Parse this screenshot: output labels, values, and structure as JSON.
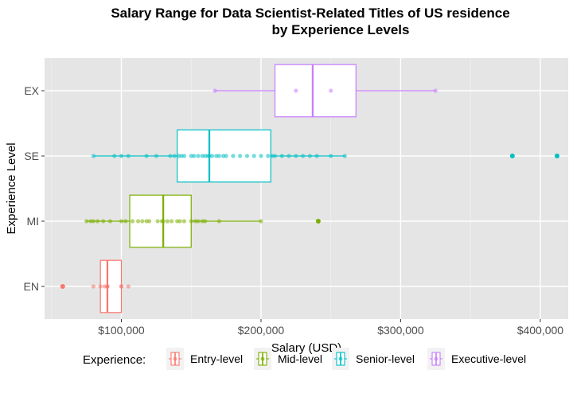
{
  "chart_data": {
    "type": "boxplot",
    "title_lines": [
      "Salary Range for Data Scientist-Related Titles of US residence",
      "by Experience Levels"
    ],
    "xlabel": "Salary (USD)",
    "ylabel": "Experience Level",
    "xlim": [
      45000,
      420000
    ],
    "x_ticks": [
      100000,
      200000,
      300000,
      400000
    ],
    "x_tick_labels": [
      "$100,000",
      "$200,000",
      "$300,000",
      "$400,000"
    ],
    "categories": [
      "EN",
      "MI",
      "SE",
      "EX"
    ],
    "grid": true,
    "legend": {
      "title": "Experience:",
      "position": "bottom",
      "entries": [
        {
          "label": "Entry-level",
          "color": "#F8766D"
        },
        {
          "label": "Mid-level",
          "color": "#7CAE00"
        },
        {
          "label": "Senior-level",
          "color": "#00BFC4"
        },
        {
          "label": "Executive-level",
          "color": "#C77CFF"
        }
      ]
    },
    "series": [
      {
        "category": "EN",
        "color": "#F8766D",
        "min": 85000,
        "q1": 85000,
        "median": 90000,
        "q3": 100000,
        "max": 100000,
        "outliers": [
          58000
        ],
        "points": [
          80000,
          85000,
          88000,
          90000,
          90000,
          100000,
          100000,
          105000
        ]
      },
      {
        "category": "MI",
        "color": "#7CAE00",
        "min": 75000,
        "q1": 106000,
        "median": 130000,
        "q3": 150000,
        "max": 200000,
        "outliers": [
          241000
        ],
        "points": [
          75000,
          78000,
          80000,
          83000,
          87000,
          92000,
          100000,
          103000,
          108000,
          112000,
          115000,
          118000,
          120000,
          126000,
          129000,
          130000,
          133000,
          136000,
          140000,
          142000,
          145000,
          150000,
          153000,
          155000,
          158000,
          160000,
          170000,
          200000
        ]
      },
      {
        "category": "SE",
        "color": "#00BFC4",
        "min": 80000,
        "q1": 140000,
        "median": 163000,
        "q3": 207000,
        "max": 260000,
        "outliers": [
          380000,
          412000
        ],
        "points": [
          80000,
          95000,
          100000,
          105000,
          118000,
          125000,
          135000,
          138000,
          141000,
          143000,
          145000,
          150000,
          152000,
          155000,
          158000,
          160000,
          162000,
          163000,
          165000,
          168000,
          170000,
          173000,
          175000,
          180000,
          185000,
          190000,
          195000,
          200000,
          205000,
          208000,
          210000,
          215000,
          220000,
          225000,
          230000,
          235000,
          240000,
          250000,
          260000
        ]
      },
      {
        "category": "EX",
        "color": "#C77CFF",
        "min": 167000,
        "q1": 210000,
        "median": 237000,
        "q3": 268000,
        "max": 325000,
        "outliers": [],
        "points": [
          167000,
          225000,
          250000,
          325000
        ]
      }
    ]
  }
}
